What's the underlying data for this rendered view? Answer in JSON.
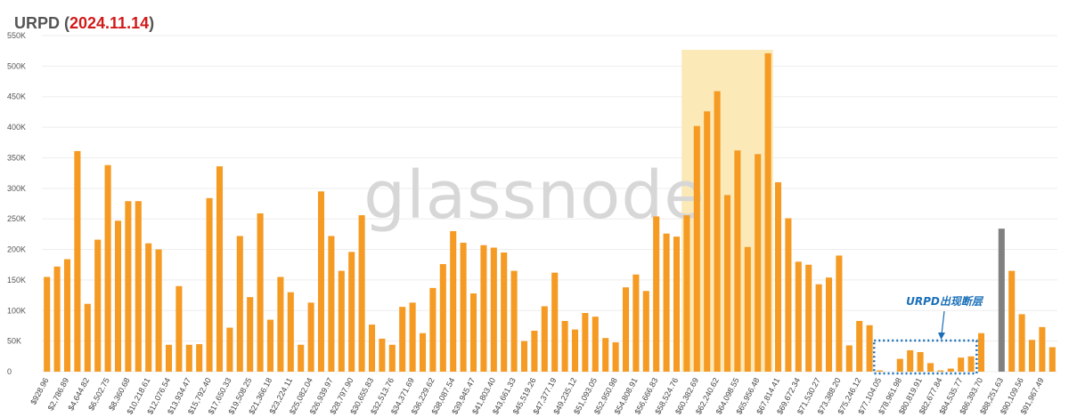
{
  "title": {
    "prefix": "URPD (",
    "date": "2024.11.14",
    "suffix": ")"
  },
  "watermark": "glassnode",
  "annotation": "URPD出现断层",
  "colors": {
    "bar": "#f59a23",
    "highlight_bar": "#808080",
    "highlight_zone": "#fbe9b7",
    "annotation": "#1a6fb8",
    "title_date": "#d11a1a"
  },
  "chart_data": {
    "type": "bar",
    "ylim": [
      0,
      550000
    ],
    "yticks": [
      0,
      50000,
      100000,
      150000,
      200000,
      250000,
      300000,
      350000,
      400000,
      450000,
      500000,
      550000
    ],
    "ytick_labels": [
      "0",
      "50K",
      "100K",
      "150K",
      "200K",
      "250K",
      "300K",
      "350K",
      "400K",
      "450K",
      "500K",
      "550K"
    ],
    "x_tick_labels": [
      "$928.96",
      "$2,786.89",
      "$4,644.82",
      "$6,502.75",
      "$8,360.68",
      "$10,218.61",
      "$12,076.54",
      "$13,934.47",
      "$15,792.40",
      "$17,650.33",
      "$19,508.25",
      "$21,366.18",
      "$23,224.11",
      "$25,082.04",
      "$26,939.97",
      "$28,797.90",
      "$30,655.83",
      "$32,513.76",
      "$34,371.69",
      "$36,229.62",
      "$38,087.54",
      "$39,945.47",
      "$41,803.40",
      "$43,661.33",
      "$45,519.26",
      "$47,377.19",
      "$49,235.12",
      "$51,093.05",
      "$52,950.98",
      "$54,808.91",
      "$56,666.83",
      "$58,524.76",
      "$60,382.69",
      "$62,240.62",
      "$64,098.55",
      "$65,956.48",
      "$67,814.41",
      "$69,672.34",
      "$71,530.27",
      "$73,388.20",
      "$75,246.12",
      "$77,104.05",
      "$78,961.98",
      "$80,819.91",
      "$82,677.84",
      "$84,535.77",
      "$86,393.70",
      "$88,251.63",
      "$90,109.56",
      "$91,967.49"
    ],
    "values": [
      155000,
      172000,
      184000,
      361000,
      111000,
      216000,
      338000,
      247000,
      279000,
      279000,
      210000,
      200000,
      44000,
      140000,
      44000,
      45000,
      284000,
      336000,
      72000,
      222000,
      122000,
      259000,
      85000,
      155000,
      130000,
      44000,
      113000,
      295000,
      222000,
      165000,
      196000,
      256000,
      77000,
      54000,
      44000,
      106000,
      113000,
      63000,
      137000,
      176000,
      230000,
      211000,
      128000,
      207000,
      203000,
      195000,
      165000,
      50000,
      67000,
      107000,
      162000,
      83000,
      69000,
      96000,
      90000,
      55000,
      48000,
      138000,
      159000,
      132000,
      254000,
      226000,
      221000,
      256000,
      402000,
      426000,
      459000,
      289000,
      362000,
      204000,
      356000,
      521000,
      310000,
      251000,
      180000,
      175000,
      143000,
      154000,
      190000,
      43000,
      83000,
      76000,
      2000,
      0,
      21000,
      35000,
      32000,
      14000,
      2000,
      5000,
      23000,
      25000,
      63000,
      0,
      234000,
      165000,
      94000,
      52000,
      73000,
      40000
    ],
    "highlight_index": 94,
    "xlabel": "",
    "ylabel": "",
    "grid": true,
    "legend": "none"
  }
}
